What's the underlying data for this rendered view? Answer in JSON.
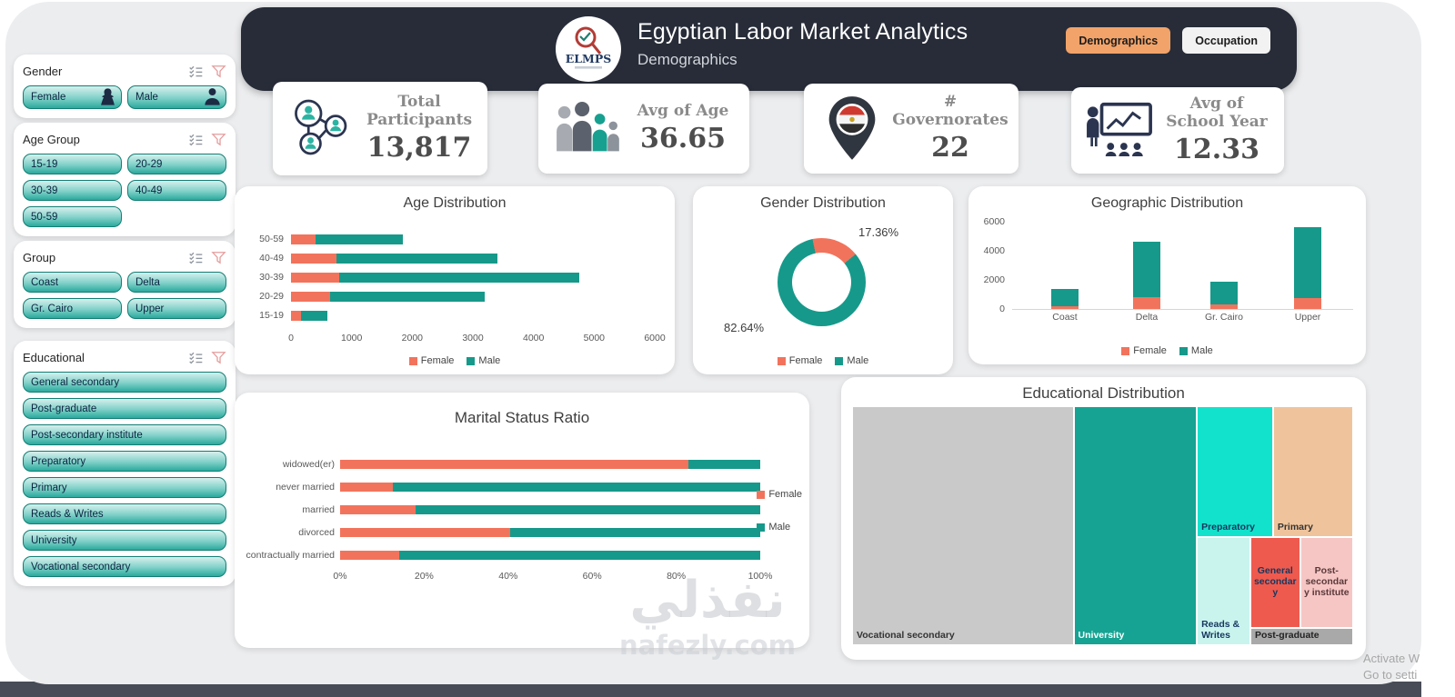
{
  "header": {
    "title": "Egyptian Labor Market Analytics",
    "subtitle": "Demographics",
    "logo": {
      "text": "ELMPS",
      "icon": "elmps-logo-icon"
    },
    "nav_buttons": [
      {
        "label": "Demographics",
        "active": true
      },
      {
        "label": "Occupation",
        "active": false
      }
    ]
  },
  "filters": [
    {
      "title": "Gender",
      "columns": 2,
      "items": [
        {
          "label": "Female",
          "icon": "female-silhouette-icon"
        },
        {
          "label": "Male",
          "icon": "male-silhouette-icon"
        }
      ]
    },
    {
      "title": "Age Group",
      "columns": 2,
      "items": [
        {
          "label": "15-19"
        },
        {
          "label": "20-29"
        },
        {
          "label": "30-39"
        },
        {
          "label": "40-49"
        },
        {
          "label": "50-59"
        }
      ]
    },
    {
      "title": "Group",
      "columns": 2,
      "items": [
        {
          "label": "Coast"
        },
        {
          "label": "Delta"
        },
        {
          "label": "Gr. Cairo"
        },
        {
          "label": "Upper"
        }
      ]
    },
    {
      "title": "Educational",
      "columns": 1,
      "items": [
        {
          "label": "General secondary"
        },
        {
          "label": "Post-graduate"
        },
        {
          "label": "Post-secondary institute"
        },
        {
          "label": "Preparatory"
        },
        {
          "label": "Primary"
        },
        {
          "label": "Reads & Writes"
        },
        {
          "label": "University"
        },
        {
          "label": "Vocational secondary"
        }
      ]
    }
  ],
  "kpis": [
    {
      "label": "Total Participants",
      "value": "13,817",
      "icon": "people-network-icon"
    },
    {
      "label": "Avg of Age",
      "value": "36.65",
      "icon": "family-icon"
    },
    {
      "label": "# Governorates",
      "value": "22",
      "icon": "egypt-map-pin-icon"
    },
    {
      "label": "Avg of School Year",
      "value": "12.33",
      "icon": "teacher-board-icon"
    }
  ],
  "chart_data": [
    {
      "id": "age",
      "type": "bar",
      "orientation": "horizontal",
      "stacked": true,
      "title": "Age Distribution",
      "categories": [
        "50-59",
        "40-49",
        "30-39",
        "20-29",
        "15-19"
      ],
      "series": [
        {
          "name": "Female",
          "color": "#F2735C",
          "values": [
            400,
            750,
            800,
            650,
            170
          ]
        },
        {
          "name": "Male",
          "color": "#16998A",
          "values": [
            1450,
            2650,
            3950,
            2550,
            430
          ]
        }
      ],
      "xlim": [
        0,
        6000
      ],
      "xticks": [
        0,
        1000,
        2000,
        3000,
        4000,
        5000,
        6000
      ],
      "legend_position": "bottom",
      "grid": false
    },
    {
      "id": "gender",
      "type": "pie",
      "donut": true,
      "title": "Gender Distribution",
      "labels": [
        "Female",
        "Male"
      ],
      "values": [
        17.36,
        82.64
      ],
      "value_labels": [
        "17.36%",
        "82.64%"
      ],
      "colors": [
        "#F2735C",
        "#16998A"
      ],
      "start_angle_deg": -12,
      "legend_position": "bottom"
    },
    {
      "id": "geo",
      "type": "bar",
      "orientation": "vertical",
      "stacked": true,
      "title": "Geographic Distribution",
      "categories": [
        "Coast",
        "Delta",
        "Gr. Cairo",
        "Upper"
      ],
      "series": [
        {
          "name": "Female",
          "color": "#F2735C",
          "values": [
            200,
            800,
            300,
            750
          ]
        },
        {
          "name": "Male",
          "color": "#16998A",
          "values": [
            1150,
            3850,
            1550,
            4850
          ]
        }
      ],
      "ylim": [
        0,
        6000
      ],
      "yticks": [
        0,
        2000,
        4000,
        6000
      ],
      "legend_position": "bottom",
      "grid": false
    },
    {
      "id": "marital",
      "type": "bar",
      "orientation": "horizontal",
      "stacked": true,
      "percent": true,
      "title": "Marital Status Ratio",
      "categories": [
        "widowed(er)",
        "never married",
        "married",
        "divorced",
        "contractually married"
      ],
      "series": [
        {
          "name": "Female",
          "color": "#F2735C",
          "values": [
            83,
            12.5,
            18,
            40.5,
            14
          ]
        },
        {
          "name": "Male",
          "color": "#16998A",
          "values": [
            17,
            87.5,
            82,
            59.5,
            86
          ]
        }
      ],
      "xticks": [
        "0%",
        "20%",
        "40%",
        "60%",
        "80%",
        "100%"
      ],
      "legend_position": "right"
    },
    {
      "id": "edu",
      "type": "treemap",
      "title": "Educational Distribution",
      "items": [
        {
          "label": "Vocational secondary",
          "color": "#C9C9C9",
          "text_color": "#333333",
          "x": 0,
          "y": 0,
          "w": 44.2,
          "h": 100,
          "label_pos": "bottom-left"
        },
        {
          "label": "University",
          "color": "#16A393",
          "text_color": "#FFFFFF",
          "x": 44.2,
          "y": 0,
          "w": 24.6,
          "h": 100,
          "label_pos": "bottom-left"
        },
        {
          "label": "Preparatory",
          "color": "#12E2CC",
          "text_color": "#17375E",
          "x": 68.8,
          "y": 0,
          "w": 15.2,
          "h": 54.7,
          "label_pos": "bottom-left"
        },
        {
          "label": "Primary",
          "color": "#EFC49C",
          "text_color": "#333333",
          "x": 84.0,
          "y": 0,
          "w": 16.0,
          "h": 54.7,
          "label_pos": "bottom-left"
        },
        {
          "label": "Reads & Writes",
          "color": "#C9F4EE",
          "text_color": "#17375E",
          "x": 68.8,
          "y": 54.7,
          "w": 10.7,
          "h": 45.3,
          "label_pos": "bottom-left"
        },
        {
          "label": "General secondary",
          "color": "#EF5A4E",
          "text_color": "#17375E",
          "x": 79.5,
          "y": 54.7,
          "w": 9.9,
          "h": 37.9,
          "label_pos": "middle"
        },
        {
          "label": "Post-secondary institute",
          "color": "#F6C6C4",
          "text_color": "#5A3A3A",
          "x": 89.4,
          "y": 54.7,
          "w": 10.6,
          "h": 37.9,
          "label_pos": "middle"
        },
        {
          "label": "Post-graduate",
          "color": "#A9A9A9",
          "text_color": "#222222",
          "x": 79.5,
          "y": 92.6,
          "w": 20.5,
          "h": 7.4,
          "label_pos": "left"
        }
      ]
    }
  ],
  "watermark": {
    "arabic": "نفذلي",
    "domain": "nafezly.com"
  },
  "window_note": {
    "line1": "Activate W",
    "line2": "Go to setti"
  }
}
